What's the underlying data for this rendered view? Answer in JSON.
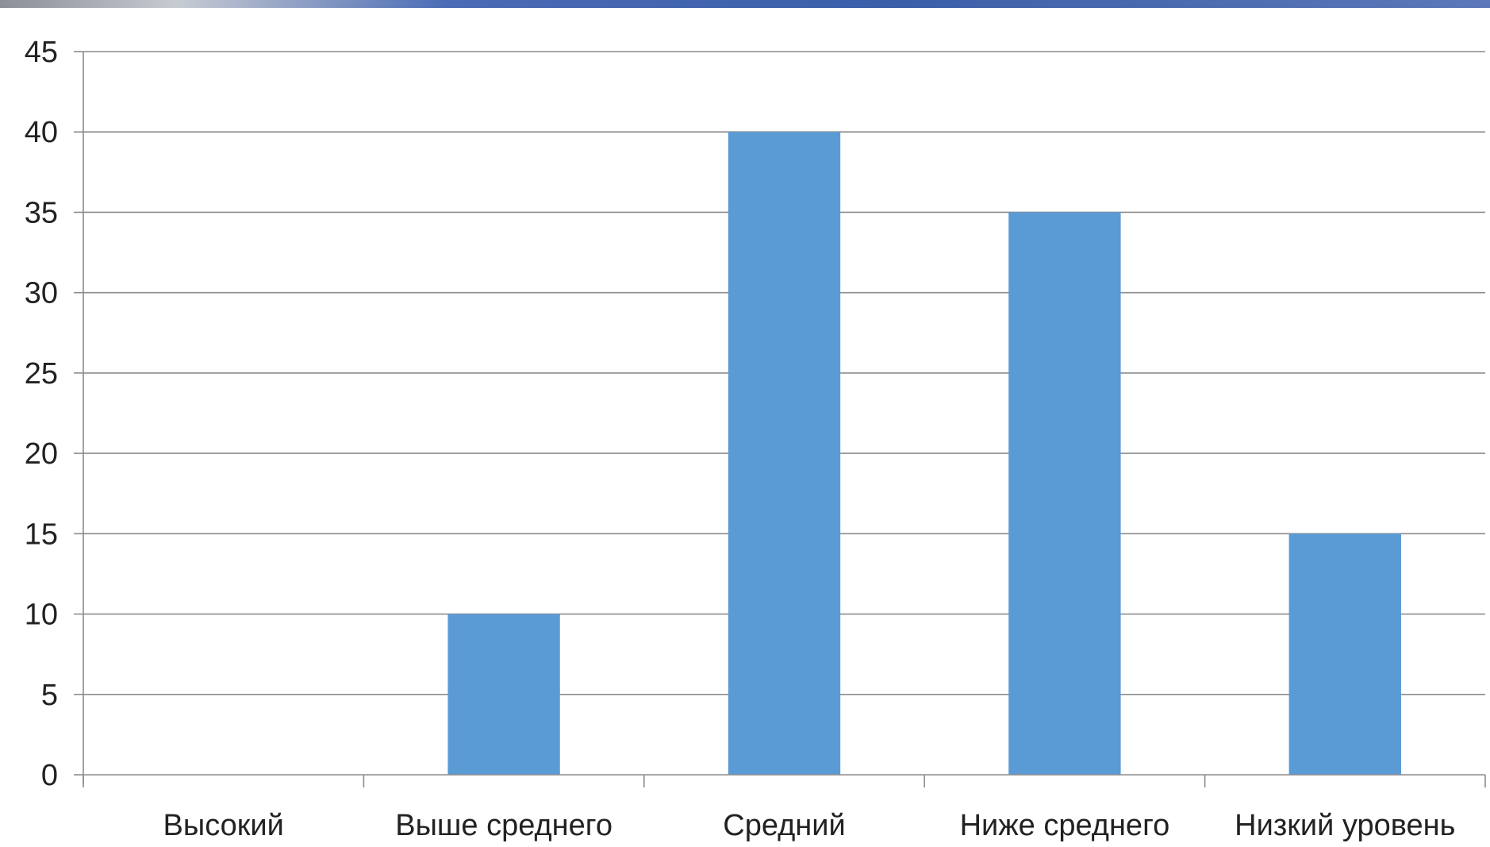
{
  "chart_data": {
    "type": "bar",
    "categories": [
      "Высокий",
      "Выше среднего",
      "Средний",
      "Ниже среднего",
      "Низкий уровень"
    ],
    "values": [
      0,
      10,
      40,
      35,
      15
    ],
    "ylim": [
      0,
      45
    ],
    "yticks": [
      0,
      5,
      10,
      15,
      20,
      25,
      30,
      35,
      40,
      45
    ],
    "grid": true,
    "legend": "none",
    "bar_color": "#5b9bd5",
    "title": "",
    "xlabel": "",
    "ylabel": ""
  }
}
